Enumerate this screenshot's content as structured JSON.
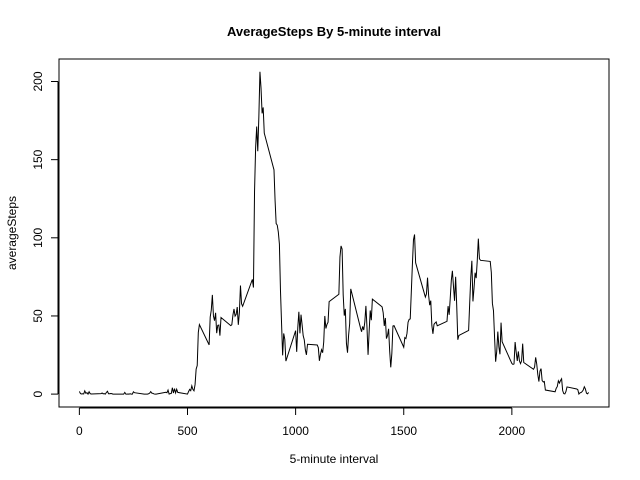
{
  "chart_data": {
    "type": "line",
    "title": "AverageSteps By 5-minute interval",
    "xlabel": "5-minute interval",
    "ylabel": "averageSteps",
    "x": [
      0,
      5,
      10,
      15,
      20,
      25,
      30,
      35,
      40,
      45,
      50,
      55,
      100,
      105,
      110,
      115,
      120,
      125,
      130,
      135,
      140,
      145,
      150,
      155,
      200,
      205,
      210,
      215,
      220,
      225,
      230,
      235,
      240,
      245,
      250,
      255,
      300,
      305,
      310,
      315,
      320,
      325,
      330,
      335,
      340,
      345,
      350,
      355,
      400,
      405,
      410,
      415,
      420,
      425,
      430,
      435,
      440,
      445,
      450,
      455,
      500,
      505,
      510,
      515,
      520,
      525,
      530,
      535,
      540,
      545,
      550,
      555,
      600,
      605,
      610,
      615,
      620,
      625,
      630,
      635,
      640,
      645,
      650,
      655,
      700,
      705,
      710,
      715,
      720,
      725,
      730,
      735,
      740,
      745,
      750,
      755,
      800,
      805,
      810,
      815,
      820,
      825,
      830,
      835,
      840,
      845,
      850,
      855,
      900,
      905,
      910,
      915,
      920,
      925,
      930,
      935,
      940,
      945,
      950,
      955,
      1000,
      1005,
      1010,
      1015,
      1020,
      1025,
      1030,
      1035,
      1040,
      1045,
      1050,
      1055,
      1100,
      1105,
      1110,
      1115,
      1120,
      1125,
      1130,
      1135,
      1140,
      1145,
      1150,
      1155,
      1200,
      1205,
      1210,
      1215,
      1220,
      1225,
      1230,
      1235,
      1240,
      1245,
      1250,
      1255,
      1300,
      1305,
      1310,
      1315,
      1320,
      1325,
      1330,
      1335,
      1340,
      1345,
      1350,
      1355,
      1400,
      1405,
      1410,
      1415,
      1420,
      1425,
      1430,
      1435,
      1440,
      1445,
      1450,
      1455,
      1500,
      1505,
      1510,
      1515,
      1520,
      1525,
      1530,
      1535,
      1540,
      1545,
      1550,
      1555,
      1600,
      1605,
      1610,
      1615,
      1620,
      1625,
      1630,
      1635,
      1640,
      1645,
      1650,
      1655,
      1700,
      1705,
      1710,
      1715,
      1720,
      1725,
      1730,
      1735,
      1740,
      1745,
      1750,
      1755,
      1800,
      1805,
      1810,
      1815,
      1820,
      1825,
      1830,
      1835,
      1840,
      1845,
      1850,
      1855,
      1900,
      1905,
      1910,
      1915,
      1920,
      1925,
      1930,
      1935,
      1940,
      1945,
      1950,
      1955,
      2000,
      2005,
      2010,
      2015,
      2020,
      2025,
      2030,
      2035,
      2040,
      2045,
      2050,
      2055,
      2100,
      2105,
      2110,
      2115,
      2120,
      2125,
      2130,
      2135,
      2140,
      2145,
      2150,
      2155,
      2200,
      2205,
      2210,
      2215,
      2220,
      2225,
      2230,
      2235,
      2240,
      2245,
      2250,
      2255,
      2300,
      2305,
      2310,
      2315,
      2320,
      2325,
      2330,
      2335,
      2340,
      2345,
      2350,
      2355
    ],
    "values": [
      1.7,
      0.3,
      0.1,
      0.2,
      0.1,
      2.1,
      0.5,
      0.9,
      0,
      1.5,
      0.3,
      0.1,
      0.3,
      0.7,
      0.2,
      0.3,
      0,
      1.1,
      1.8,
      0.2,
      0.2,
      0.4,
      0.3,
      0,
      0,
      0,
      1.1,
      0,
      0,
      0.1,
      0,
      0.2,
      0,
      0,
      1.5,
      0.9,
      0,
      0,
      0,
      0,
      0.2,
      0.6,
      1.6,
      0.6,
      0.5,
      0.1,
      0,
      0,
      1.2,
      0.9,
      2.6,
      0,
      0.3,
      0.4,
      4.1,
      0.7,
      3.5,
      0.8,
      3.1,
      1.1,
      0,
      1.6,
      3,
      2.2,
      5.3,
      3,
      2.1,
      6.1,
      16,
      18.3,
      39.5,
      44.5,
      31.5,
      49.3,
      53.8,
      63.5,
      50,
      47,
      52,
      39,
      44,
      44.2,
      37.4,
      49,
      43.8,
      44.4,
      50.5,
      54.5,
      49.9,
      51,
      55.7,
      44.3,
      52.3,
      69.5,
      57.8,
      56.2,
      73.4,
      68.2,
      129.4,
      157.5,
      171.2,
      155.4,
      177.3,
      206.2,
      195.9,
      179.6,
      183.4,
      167,
      143.5,
      124,
      109.1,
      108.1,
      103.7,
      96,
      66.2,
      45.2,
      24.8,
      38.8,
      35,
      21.1,
      40.6,
      27,
      42.4,
      52.7,
      38.9,
      50.8,
      44.3,
      37.4,
      34.7,
      28.3,
      25.1,
      31.9,
      31.4,
      29.7,
      21.3,
      25.5,
      28.4,
      26.5,
      33.4,
      50,
      42,
      44.6,
      46,
      59.2,
      63.9,
      87.7,
      94.8,
      92.8,
      63.4,
      50.2,
      54.5,
      32.4,
      26.5,
      37.7,
      45.1,
      67.3,
      42.3,
      39.9,
      43.3,
      41,
      46.2,
      56.4,
      42.8,
      25.1,
      40,
      53.5,
      47.3,
      60.8,
      55.8,
      52,
      43.6,
      48.7,
      35.5,
      37.5,
      41.8,
      27.5,
      17.1,
      26.1,
      43.6,
      43.8,
      30,
      36.1,
      35.5,
      38.8,
      46,
      47.8,
      48.1,
      65.3,
      82.9,
      98.7,
      102.1,
      84,
      62.1,
      64.1,
      74.5,
      63.2,
      56.9,
      59.8,
      43.9,
      38.6,
      44.7,
      45.5,
      46.2,
      43.7,
      46.6,
      56.3,
      50.7,
      61.2,
      72.7,
      78.9,
      68.9,
      59.7,
      75.1,
      56.5,
      34.8,
      37.5,
      40.7,
      58,
      74.7,
      85.3,
      59.3,
      67.8,
      77.7,
      74.2,
      85.3,
      99.5,
      86.6,
      85.6,
      84.9,
      77.8,
      58,
      53.4,
      36.3,
      20.7,
      27.4,
      40,
      30.2,
      25.5,
      45.7,
      33.5,
      19.6,
      19,
      19.3,
      33.3,
      26.8,
      21.2,
      27.3,
      21.3,
      19.5,
      21.3,
      32.3,
      20.2,
      15.9,
      17.2,
      23.5,
      19.2,
      12.5,
      8,
      14.7,
      16.3,
      8.7,
      7.8,
      8.1,
      2.6,
      1.5,
      3.7,
      4.8,
      8.5,
      7.1,
      8.7,
      9.8,
      2.2,
      0.3,
      0.1,
      1.6,
      4.6,
      3.3,
      2.8,
      0,
      0.8,
      1,
      1.6,
      2.6,
      4.7,
      3.3,
      0.6,
      0.2,
      1.1
    ],
    "color": "#000000",
    "xlim": [
      -94.2,
      2449.2
    ],
    "xticks": [
      0,
      500,
      1000,
      1500,
      2000
    ],
    "ylim": [
      -8.25,
      214.4
    ],
    "yticks": [
      0,
      50,
      100,
      150,
      200
    ]
  }
}
